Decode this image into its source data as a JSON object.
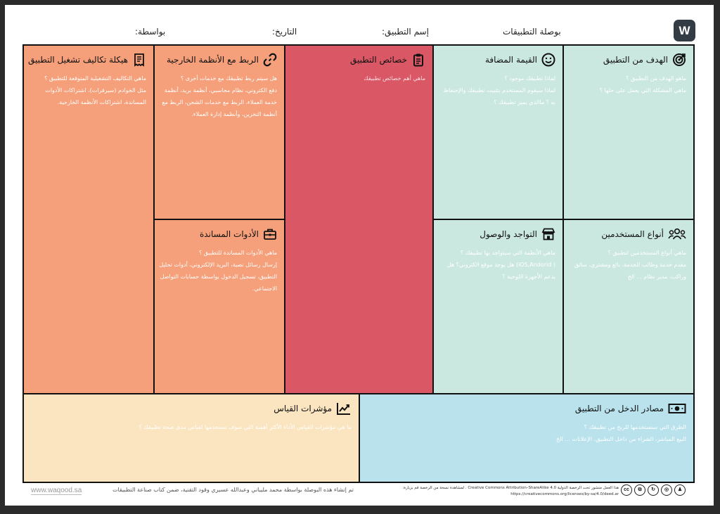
{
  "header": {
    "brand_letter": "W",
    "title": "بوصلة التطبيقات",
    "app_name_label": "إسم التطبيق:",
    "date_label": "التاريخ:",
    "by_label": "بواسطة:"
  },
  "cells": {
    "goal": {
      "icon": "target-icon",
      "title": "الهدف من التطبيق",
      "lines": [
        "ماهو الهدف من التطبيق ؟",
        "ماهي المشكلة التي يعمل على حلها ؟"
      ]
    },
    "value": {
      "icon": "smiley-icon",
      "title": "القيمة المضافة",
      "lines": [
        "لماذا تطبيقك موجود ؟",
        "لماذا سيقوم المستخدم بتثبيت تطبيقك والإحتفاظ",
        "به ؟ ماالذي يميز تطبيقك ؟"
      ]
    },
    "features": {
      "icon": "clipboard-icon",
      "title": "خصائص التطبيق",
      "lines": [
        "ماهي أهم خصائص تطبيقك"
      ]
    },
    "integrations": {
      "icon": "link-icon",
      "title": "الربط مع الأنظمة الخارجية",
      "lines": [
        "هل سيتم ربط تطبيقك مع خدمات أخرى ؟",
        "دفع الكتروني، نظام محاسبي، أنظمة بريد، أنظمة",
        "خدمة العملاء، الربط مع خدمات الشحن، الربط مع",
        "أنظمة التخزين، وأنظمة إدارة العملاء."
      ]
    },
    "costs": {
      "icon": "receipt-icon",
      "title": "هيكلة تكاليف تشغيل التطبيق",
      "lines": [
        "ماهي التكاليف التشغيلية المتوقعة للتطبيق ؟",
        "مثل الخوادم (سيرفرات)، اشتراكات الأدوات",
        "المساندة، اشتراكات الأنظمة الخارجية."
      ]
    },
    "users": {
      "icon": "users-icon",
      "title": "أنواع المستخدمين",
      "lines": [
        "ماهي أنواع المستخدمين لتطبيق ؟",
        "مقدم خدمة وطالب للخدمة، بائع ومشتري، سائق",
        "وراكب، مدير نظام ... الخ"
      ]
    },
    "reach": {
      "icon": "store-icon",
      "title": "التواجد والوصول",
      "lines": [
        "ماهي الأنظمة التي سيتواجد بها تطبيقك ؟",
        "( iOS,Andorid) هل يوجد موقع الكتروني؟ هل",
        "يدعم الأجهزة اللوحية ؟"
      ]
    },
    "tools": {
      "icon": "toolbox-icon",
      "title": "الأدوات المساندة",
      "lines": [
        "ماهي الأدوات المساندة للتطبيق ؟",
        "إرسال رسائل نصية، البريد الإلكتروني، أدوات تحليل",
        "التطبيق، تسجيل الدخول بواسطة حسابات التواصل",
        "الاجتماعي."
      ]
    },
    "revenue": {
      "icon": "banknote-icon",
      "title": "مصادر الدخل من التطبيق",
      "lines": [
        "الطرق التي ستستخدمها للربح من تطبيقك ؟",
        "البيع المباشر، الشراء من داخل التطبيق، الإعلانات ... الخ"
      ]
    },
    "kpi": {
      "icon": "trend-chart-icon",
      "title": "مؤشرات القياس",
      "lines": [
        "ما هي مؤشرات القياس الأداء الأكثر أهمية التي سوف تستخدمها لقياس مدى صحة تطبيقك ؟"
      ]
    }
  },
  "footer": {
    "url": "www.waqood.sa",
    "credit": "تم إنشاء هذه البوصلة بواسطة محمد مليباني وعبدالله عسيري وقود التقنية، ضمن كتاب صناعة التطبيقات",
    "license_line1": "هذا العمل منشور تحت الرخصة الدولية Creative Commons Attribution–ShareAlike 4.0 . لمشاهدة نسخة من الرخصة قم بزيارة:",
    "license_line2": "https://creativecommons.org/licenses/by-sa/4.0/deed.ar",
    "cc_icons": [
      "cc-icon",
      "share-icon",
      "remix-icon",
      "nc-icon",
      "attribution-icon"
    ]
  }
}
